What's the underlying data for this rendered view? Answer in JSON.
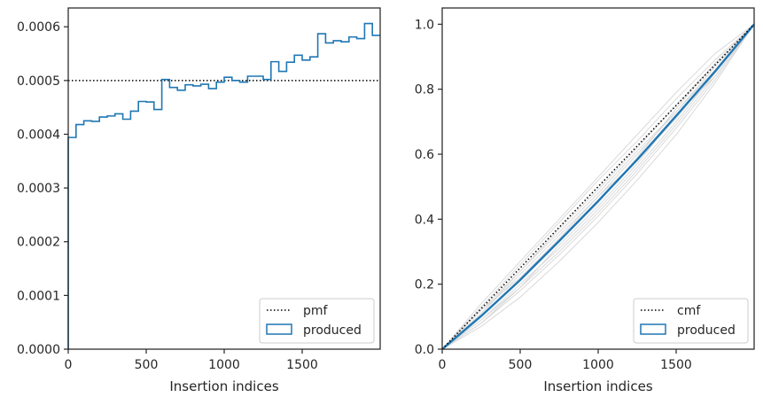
{
  "chart_data": [
    {
      "type": "step",
      "xlabel": "Insertion indices",
      "ylabel": "",
      "xlim": [
        0,
        2000
      ],
      "ylim": [
        0,
        0.000635
      ],
      "x_ticks": [
        0,
        500,
        1000,
        1500
      ],
      "x_tick_labels": [
        "0",
        "500",
        "1000",
        "1500"
      ],
      "y_ticks": [
        0,
        0.0001,
        0.0002,
        0.0003,
        0.0004,
        0.0005,
        0.0006
      ],
      "y_tick_labels": [
        "0.0000",
        "0.0001",
        "0.0002",
        "0.0003",
        "0.0004",
        "0.0005",
        "0.0006"
      ],
      "grid": false,
      "legend_position": "lower-right",
      "reference_line": {
        "name": "pmf",
        "y": 0.0005,
        "style": "dotted",
        "color": "#000000"
      },
      "series": [
        {
          "name": "produced",
          "color": "#1f77b4",
          "bin_width": 50,
          "x": [
            0,
            50,
            100,
            150,
            200,
            250,
            300,
            350,
            400,
            450,
            500,
            550,
            600,
            650,
            700,
            750,
            800,
            850,
            900,
            950,
            1000,
            1050,
            1100,
            1150,
            1200,
            1250,
            1300,
            1350,
            1400,
            1450,
            1500,
            1550,
            1600,
            1650,
            1700,
            1750,
            1800,
            1850,
            1900,
            1950
          ],
          "values": [
            0.000394,
            0.000418,
            0.000425,
            0.000424,
            0.000432,
            0.000434,
            0.000438,
            0.000428,
            0.000443,
            0.000461,
            0.00046,
            0.000446,
            0.000502,
            0.000487,
            0.000482,
            0.000492,
            0.00049,
            0.000493,
            0.000485,
            0.000497,
            0.000506,
            0.0005,
            0.000497,
            0.000508,
            0.000508,
            0.000502,
            0.000535,
            0.000517,
            0.000534,
            0.000547,
            0.000538,
            0.000544,
            0.000587,
            0.00057,
            0.000574,
            0.000572,
            0.000581,
            0.000578,
            0.000606,
            0.000584
          ]
        }
      ]
    },
    {
      "type": "line",
      "xlabel": "Insertion indices",
      "ylabel": "",
      "xlim": [
        0,
        2000
      ],
      "ylim": [
        0,
        1.05
      ],
      "x_ticks": [
        0,
        500,
        1000,
        1500
      ],
      "x_tick_labels": [
        "0",
        "500",
        "1000",
        "1500"
      ],
      "y_ticks": [
        0,
        0.2,
        0.4,
        0.6,
        0.8,
        1.0
      ],
      "y_tick_labels": [
        "0.0",
        "0.2",
        "0.4",
        "0.6",
        "0.8",
        "1.0"
      ],
      "grid": false,
      "legend_position": "lower-right",
      "reference_line": {
        "name": "cmf",
        "x": [
          0,
          2000
        ],
        "y": [
          0,
          1
        ],
        "style": "dotted",
        "color": "#000000"
      },
      "series": [
        {
          "name": "produced",
          "color": "#1f77b4",
          "x": [
            0,
            250,
            500,
            750,
            1000,
            1250,
            1500,
            1750,
            2000
          ],
          "y": [
            0,
            0.102,
            0.213,
            0.333,
            0.456,
            0.583,
            0.718,
            0.855,
            1.0
          ]
        }
      ],
      "background_lines": [
        {
          "color": "#d9d9d9",
          "x": [
            0,
            250,
            500,
            750,
            1000,
            1250,
            1500,
            1750,
            2000
          ],
          "y": [
            0,
            0.08,
            0.18,
            0.29,
            0.41,
            0.54,
            0.68,
            0.83,
            1.0
          ]
        },
        {
          "color": "#d9d9d9",
          "x": [
            0,
            250,
            500,
            750,
            1000,
            1250,
            1500,
            1750,
            2000
          ],
          "y": [
            0,
            0.12,
            0.24,
            0.37,
            0.49,
            0.62,
            0.75,
            0.88,
            1.0
          ]
        },
        {
          "color": "#d9d9d9",
          "x": [
            0,
            250,
            500,
            750,
            1000,
            1250,
            1500,
            1750,
            2000
          ],
          "y": [
            0,
            0.09,
            0.2,
            0.31,
            0.43,
            0.56,
            0.7,
            0.85,
            1.0
          ]
        },
        {
          "color": "#d9d9d9",
          "x": [
            0,
            250,
            500,
            750,
            1000,
            1250,
            1500,
            1750,
            2000
          ],
          "y": [
            0,
            0.11,
            0.23,
            0.35,
            0.47,
            0.6,
            0.73,
            0.87,
            1.0
          ]
        },
        {
          "color": "#d9d9d9",
          "x": [
            0,
            250,
            500,
            750,
            1000,
            1250,
            1500,
            1750,
            2000
          ],
          "y": [
            0,
            0.13,
            0.26,
            0.39,
            0.52,
            0.64,
            0.77,
            0.89,
            1.0
          ]
        },
        {
          "color": "#d9d9d9",
          "x": [
            0,
            250,
            500,
            750,
            1000,
            1250,
            1500,
            1750,
            2000
          ],
          "y": [
            0,
            0.07,
            0.16,
            0.27,
            0.39,
            0.52,
            0.66,
            0.82,
            1.0
          ]
        },
        {
          "color": "#d9d9d9",
          "x": [
            0,
            250,
            500,
            750,
            1000,
            1250,
            1500,
            1750,
            2000
          ],
          "y": [
            0,
            0.1,
            0.21,
            0.33,
            0.45,
            0.59,
            0.74,
            0.88,
            1.0
          ]
        },
        {
          "color": "#d9d9d9",
          "x": [
            0,
            250,
            500,
            750,
            1000,
            1250,
            1500,
            1750,
            2000
          ],
          "y": [
            0,
            0.12,
            0.22,
            0.34,
            0.47,
            0.58,
            0.71,
            0.86,
            1.0
          ]
        },
        {
          "color": "#d9d9d9",
          "x": [
            0,
            250,
            500,
            750,
            1000,
            1250,
            1500,
            1750,
            2000
          ],
          "y": [
            0,
            0.09,
            0.19,
            0.32,
            0.44,
            0.57,
            0.72,
            0.84,
            1.0
          ]
        },
        {
          "color": "#d9d9d9",
          "x": [
            0,
            250,
            500,
            750,
            1000,
            1250,
            1500,
            1750,
            2000
          ],
          "y": [
            0,
            0.11,
            0.24,
            0.36,
            0.48,
            0.61,
            0.73,
            0.86,
            1.0
          ]
        },
        {
          "color": "#d9d9d9",
          "x": [
            0,
            250,
            500,
            750,
            1000,
            1250,
            1500,
            1750,
            2000
          ],
          "y": [
            0,
            0.08,
            0.19,
            0.3,
            0.42,
            0.55,
            0.69,
            0.84,
            1.0
          ]
        },
        {
          "color": "#d9d9d9",
          "x": [
            0,
            250,
            500,
            750,
            1000,
            1250,
            1500,
            1750,
            2000
          ],
          "y": [
            0,
            0.14,
            0.27,
            0.4,
            0.53,
            0.66,
            0.79,
            0.91,
            1.0
          ]
        }
      ]
    }
  ]
}
